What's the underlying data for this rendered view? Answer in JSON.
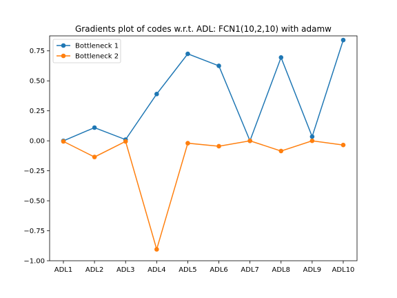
{
  "chart_data": {
    "type": "line",
    "title": "Gradients plot of codes w.r.t. ADL: FCN1(10,2,10) with adamw",
    "xlabel": "",
    "ylabel": "",
    "categories": [
      "ADL1",
      "ADL2",
      "ADL3",
      "ADL4",
      "ADL5",
      "ADL6",
      "ADL7",
      "ADL8",
      "ADL9",
      "ADL10"
    ],
    "ylim": [
      -1.0,
      0.875
    ],
    "yticks": [
      -1.0,
      -0.75,
      -0.5,
      -0.25,
      0.0,
      0.25,
      0.5,
      0.75
    ],
    "ytick_labels": [
      "−1.00",
      "−0.75",
      "−0.50",
      "−0.25",
      "0.00",
      "0.25",
      "0.50",
      "0.75"
    ],
    "grid": false,
    "legend_position": "top-left",
    "series": [
      {
        "name": "Bottleneck 1",
        "color": "#1f77b4",
        "marker": "circle",
        "values": [
          0.0,
          0.11,
          0.01,
          0.39,
          0.725,
          0.625,
          0.0,
          0.695,
          0.035,
          0.84
        ]
      },
      {
        "name": "Bottleneck 2",
        "color": "#ff7f0e",
        "marker": "circle",
        "values": [
          -0.005,
          -0.135,
          -0.005,
          -0.905,
          -0.02,
          -0.045,
          0.0,
          -0.085,
          0.0,
          -0.035
        ]
      }
    ]
  }
}
